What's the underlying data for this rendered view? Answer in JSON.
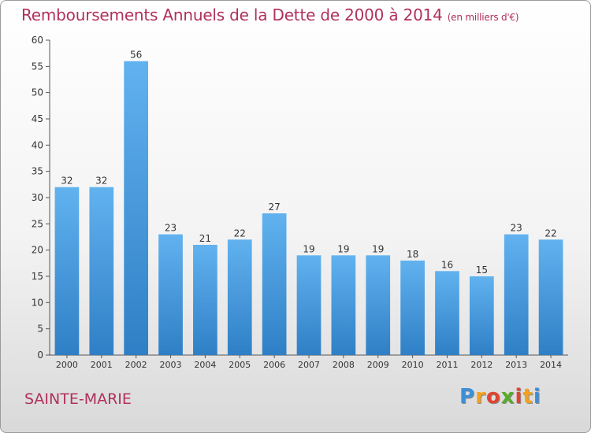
{
  "header": {
    "title": "Remboursements Annuels de la Dette de 2000 à 2014",
    "subtitle": "(en milliers d'€)"
  },
  "footer": {
    "place": "SAINTE-MARIE",
    "logo_text": "Proxiti",
    "logo_colors": [
      "#3b8fd6",
      "#f3a01c",
      "#e0432f",
      "#5aaa2e"
    ]
  },
  "chart_data": {
    "type": "bar",
    "categories": [
      "2000",
      "2001",
      "2002",
      "2003",
      "2004",
      "2005",
      "2006",
      "2007",
      "2008",
      "2009",
      "2010",
      "2011",
      "2012",
      "2013",
      "2014"
    ],
    "values": [
      32,
      32,
      56,
      23,
      21,
      22,
      27,
      19,
      19,
      19,
      18,
      16,
      15,
      23,
      22
    ],
    "ylim": [
      0,
      60
    ],
    "yticks": [
      0,
      5,
      10,
      15,
      20,
      25,
      30,
      35,
      40,
      45,
      50,
      55,
      60
    ],
    "grid": false,
    "bar_color": "#3a8fd8",
    "bar_color_light": "#5fb0ee"
  }
}
